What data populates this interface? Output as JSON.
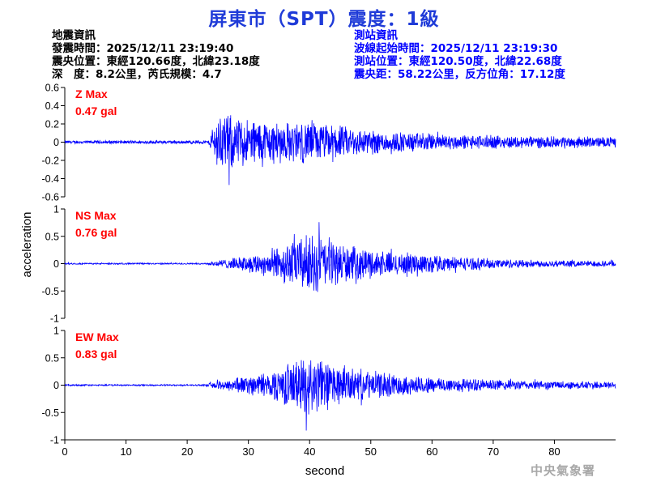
{
  "title": "屏東市（SPT）震度：1級",
  "earthquake_info": {
    "heading": "地震資訊",
    "origin_time": "發震時間：2025/12/11 23:19:40",
    "epicenter": "震央位置：東經120.66度，北緯23.18度",
    "depth_magnitude": "深　度：8.2公里，芮氏規模：4.7"
  },
  "station_info": {
    "heading": "測站資訊",
    "wave_start": "波線起始時間：2025/12/11 23:19:30",
    "station_location": "測站位置：東經120.50度，北緯22.68度",
    "distance_azimuth": "震央距：58.22公里，反方位角：17.12度"
  },
  "watermark": "中央氣象署",
  "chart_data": {
    "type": "line",
    "xlabel": "second",
    "ylabel": "acceleration",
    "x_range": [
      0,
      90
    ],
    "x_ticks": [
      "0",
      "10",
      "20",
      "30",
      "40",
      "50",
      "60",
      "70",
      "80"
    ],
    "x_tick_values": [
      0,
      10,
      20,
      30,
      40,
      50,
      60,
      70,
      80
    ],
    "line_color": "#0000ff",
    "annotation_color": "#ff0000",
    "grid": false,
    "panels": [
      {
        "component": "Z",
        "label_name": "Z Max",
        "label_value": "0.47 gal",
        "peak": 0.47,
        "ylim": [
          -0.6,
          0.6
        ],
        "yticks": [
          0.6,
          0.4,
          0.2,
          0,
          -0.2,
          -0.4,
          -0.6
        ],
        "ytick_labels": [
          "0.6",
          "0.4",
          "0.2",
          "0",
          "-0.2",
          "-0.4",
          "-0.6"
        ],
        "noise_floor": 0.02,
        "envelope": [
          [
            0,
            0.02
          ],
          [
            23.5,
            0.02
          ],
          [
            24,
            0.15
          ],
          [
            25,
            0.3
          ],
          [
            26,
            0.36
          ],
          [
            28,
            0.3
          ],
          [
            32,
            0.27
          ],
          [
            36,
            0.24
          ],
          [
            40,
            0.25
          ],
          [
            44,
            0.2
          ],
          [
            48,
            0.17
          ],
          [
            52,
            0.13
          ],
          [
            58,
            0.11
          ],
          [
            64,
            0.09
          ],
          [
            70,
            0.08
          ],
          [
            78,
            0.07
          ],
          [
            90,
            0.06
          ]
        ]
      },
      {
        "component": "NS",
        "label_name": "NS Max",
        "label_value": "0.76 gal",
        "peak": 0.76,
        "ylim": [
          -1,
          1
        ],
        "yticks": [
          1,
          0.5,
          0,
          -0.5,
          -1
        ],
        "ytick_labels": [
          "1",
          "0.5",
          "0",
          "-0.5",
          "-1"
        ],
        "noise_floor": 0.015,
        "envelope": [
          [
            0,
            0.015
          ],
          [
            23,
            0.015
          ],
          [
            24,
            0.05
          ],
          [
            28,
            0.12
          ],
          [
            32,
            0.22
          ],
          [
            36,
            0.4
          ],
          [
            39,
            0.55
          ],
          [
            41,
            0.6
          ],
          [
            44,
            0.42
          ],
          [
            48,
            0.32
          ],
          [
            52,
            0.25
          ],
          [
            58,
            0.2
          ],
          [
            64,
            0.14
          ],
          [
            70,
            0.1
          ],
          [
            78,
            0.07
          ],
          [
            90,
            0.06
          ]
        ]
      },
      {
        "component": "EW",
        "label_name": "EW Max",
        "label_value": "0.83 gal",
        "peak": 0.83,
        "ylim": [
          -1,
          1
        ],
        "yticks": [
          1,
          0.5,
          0,
          -0.5,
          -1
        ],
        "ytick_labels": [
          "1",
          "0.5",
          "0",
          "-0.5",
          "-1"
        ],
        "noise_floor": 0.015,
        "envelope": [
          [
            0,
            0.015
          ],
          [
            23,
            0.015
          ],
          [
            24,
            0.06
          ],
          [
            28,
            0.15
          ],
          [
            32,
            0.22
          ],
          [
            35,
            0.35
          ],
          [
            38,
            0.5
          ],
          [
            40,
            0.62
          ],
          [
            42,
            0.5
          ],
          [
            46,
            0.35
          ],
          [
            50,
            0.28
          ],
          [
            55,
            0.2
          ],
          [
            60,
            0.16
          ],
          [
            66,
            0.13
          ],
          [
            72,
            0.1
          ],
          [
            80,
            0.08
          ],
          [
            90,
            0.07
          ]
        ]
      }
    ]
  }
}
